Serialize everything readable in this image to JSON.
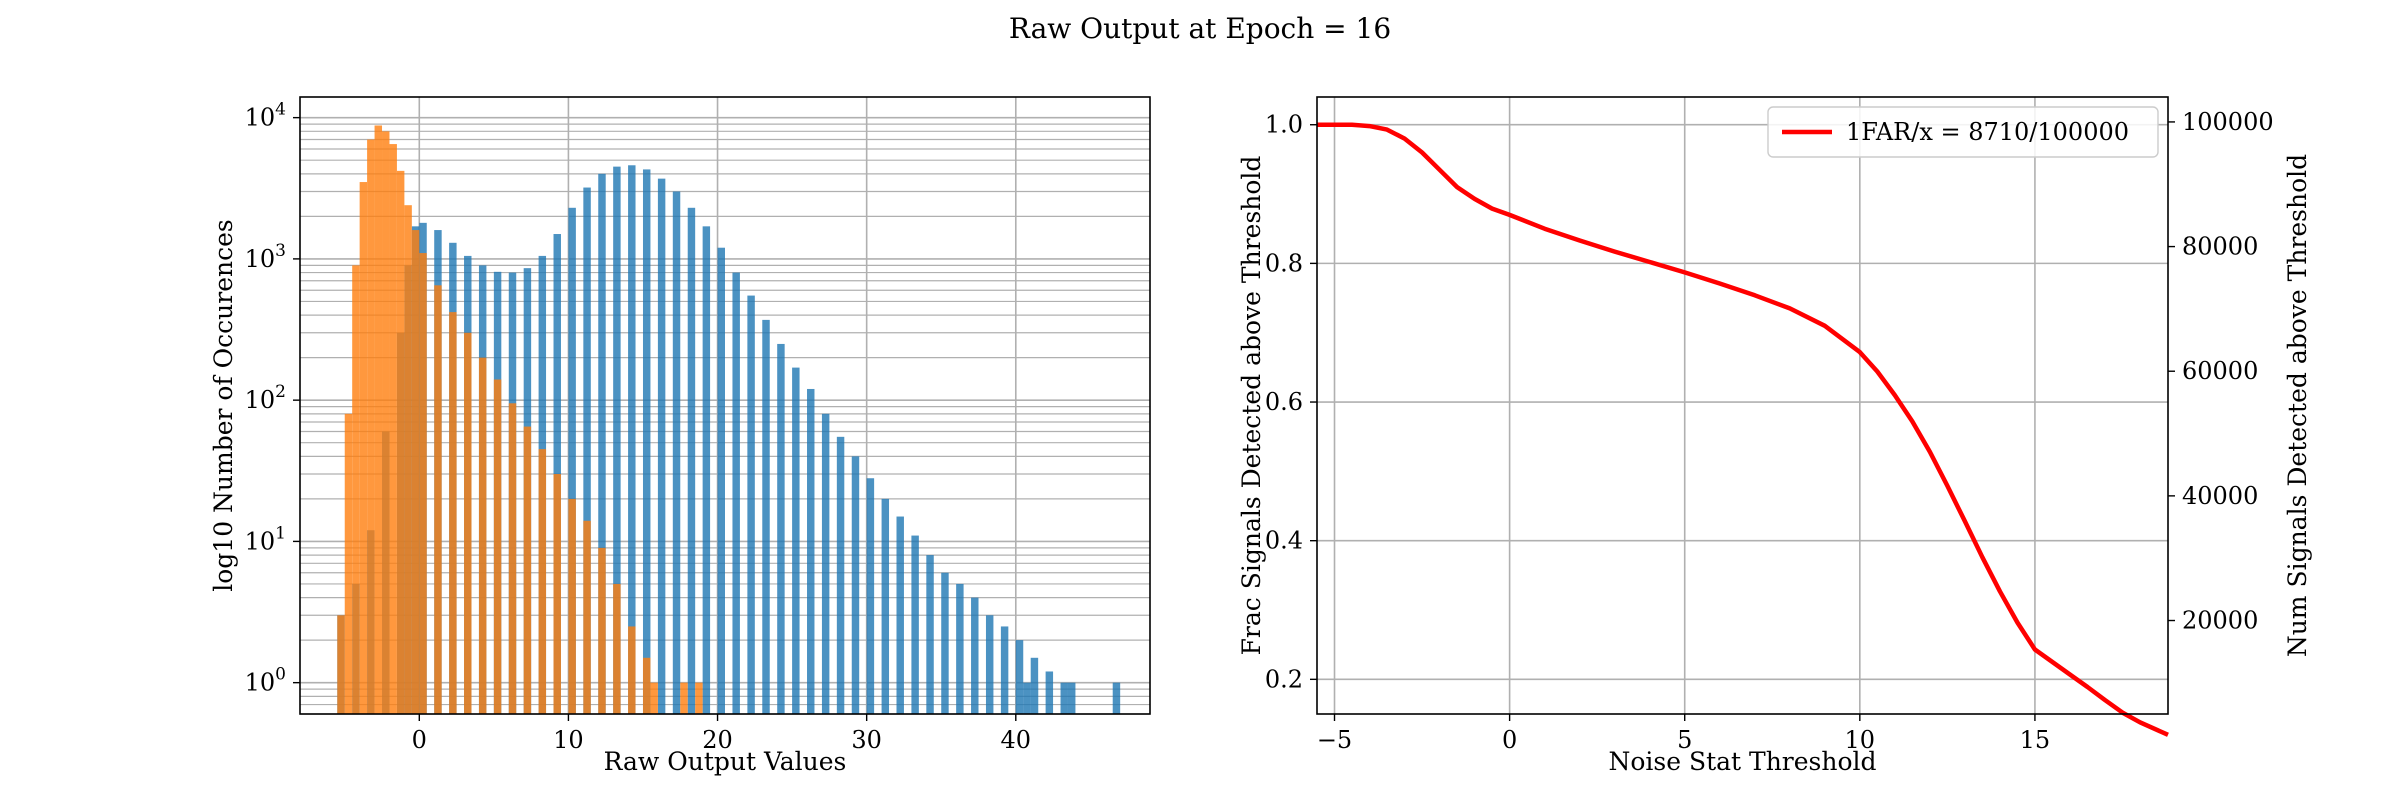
{
  "figure_title": "Raw Output at Epoch = 16",
  "chart_data": [
    {
      "type": "histogram",
      "title": "",
      "xlabel": "Raw Output Values",
      "ylabel": "log10 Number of Occurences",
      "yscale": "log",
      "xlim": [
        -8,
        49
      ],
      "ylim": [
        0.6,
        14000
      ],
      "grid": true,
      "xticks": [
        0,
        10,
        20,
        30,
        40
      ],
      "yticks": [
        {
          "value": 1,
          "base": "10",
          "exp": "0"
        },
        {
          "value": 10,
          "base": "10",
          "exp": "1"
        },
        {
          "value": 100,
          "base": "10",
          "exp": "2"
        },
        {
          "value": 1000,
          "base": "10",
          "exp": "3"
        },
        {
          "value": 10000,
          "base": "10",
          "exp": "4"
        }
      ],
      "series": [
        {
          "color": "#1f77b4",
          "alpha": 0.8,
          "bin_width": 0.5,
          "points": [
            [
              -5.5,
              3
            ],
            [
              -4.5,
              5
            ],
            [
              -3.5,
              12
            ],
            [
              -2.5,
              60
            ],
            [
              -1.5,
              300
            ],
            [
              -1,
              900
            ],
            [
              -0.5,
              1700
            ],
            [
              0,
              1800
            ],
            [
              1,
              1600
            ],
            [
              2,
              1300
            ],
            [
              3,
              1050
            ],
            [
              4,
              900
            ],
            [
              5,
              810
            ],
            [
              6,
              800
            ],
            [
              7,
              860
            ],
            [
              8,
              1050
            ],
            [
              9,
              1500
            ],
            [
              10,
              2300
            ],
            [
              11,
              3200
            ],
            [
              12,
              4000
            ],
            [
              13,
              4500
            ],
            [
              14,
              4600
            ],
            [
              15,
              4300
            ],
            [
              16,
              3700
            ],
            [
              17,
              3000
            ],
            [
              18,
              2300
            ],
            [
              19,
              1700
            ],
            [
              20,
              1200
            ],
            [
              21,
              800
            ],
            [
              22,
              550
            ],
            [
              23,
              370
            ],
            [
              24,
              250
            ],
            [
              25,
              170
            ],
            [
              26,
              120
            ],
            [
              27,
              80
            ],
            [
              28,
              55
            ],
            [
              29,
              40
            ],
            [
              30,
              28
            ],
            [
              31,
              20
            ],
            [
              32,
              15
            ],
            [
              33,
              11
            ],
            [
              34,
              8
            ],
            [
              35,
              6
            ],
            [
              36,
              5
            ],
            [
              37,
              4
            ],
            [
              38,
              3
            ],
            [
              39,
              2.5
            ],
            [
              40,
              2
            ],
            [
              41,
              1.5
            ],
            [
              42,
              1.2
            ]
          ],
          "sparse": [
            [
              40,
              1
            ],
            [
              40.5,
              1
            ],
            [
              41,
              1
            ],
            [
              43,
              1
            ],
            [
              43.5,
              1
            ],
            [
              46.5,
              1
            ]
          ]
        },
        {
          "color": "#ff7f0e",
          "alpha": 0.8,
          "bin_width": 0.5,
          "points": [
            [
              -5.5,
              3
            ],
            [
              -5,
              80
            ],
            [
              -4.5,
              900
            ],
            [
              -4,
              3500
            ],
            [
              -3.5,
              7000
            ],
            [
              -3,
              8800
            ],
            [
              -2.5,
              8000
            ],
            [
              -2,
              6500
            ],
            [
              -1.5,
              4200
            ],
            [
              -1,
              2400
            ],
            [
              -0.5,
              1600
            ],
            [
              0,
              1100
            ],
            [
              1,
              650
            ],
            [
              2,
              420
            ],
            [
              3,
              300
            ],
            [
              4,
              200
            ],
            [
              5,
              140
            ],
            [
              6,
              95
            ],
            [
              7,
              65
            ],
            [
              8,
              45
            ],
            [
              9,
              30
            ],
            [
              10,
              20
            ],
            [
              11,
              14
            ],
            [
              12,
              9
            ],
            [
              13,
              5
            ],
            [
              14,
              2.5
            ],
            [
              15,
              1.5
            ],
            [
              15.5,
              1
            ]
          ],
          "sparse": [
            [
              17.5,
              1
            ],
            [
              18.5,
              1
            ]
          ]
        }
      ]
    },
    {
      "type": "line",
      "title": "",
      "xlabel": "Noise Stat Threshold",
      "ylabel": "Frac Signals Detected above Threshold",
      "y2label": "Num Signals Detected above Threshold",
      "xlim": [
        -5.5,
        18.8
      ],
      "ylim": [
        0.15,
        1.04
      ],
      "y2lim": [
        5000,
        104000
      ],
      "xticks": [
        -5,
        0,
        5,
        10,
        15
      ],
      "yticks": [
        0.2,
        0.4,
        0.6,
        0.8,
        1.0
      ],
      "y2ticks": [
        20000,
        40000,
        60000,
        80000,
        100000
      ],
      "grid": true,
      "legend_position": "top-right",
      "series": [
        {
          "name": "1FAR/x = 8710/100000",
          "color": "#ff0000",
          "x": [
            -5.5,
            -5,
            -4.5,
            -4,
            -3.5,
            -3,
            -2.5,
            -2,
            -1.5,
            -1,
            -0.5,
            0,
            1,
            2,
            3,
            4,
            5,
            6,
            7,
            8,
            9,
            10,
            10.5,
            11,
            11.5,
            12,
            12.5,
            13,
            13.5,
            14,
            14.5,
            15,
            15.5,
            16,
            16.5,
            17,
            17.5,
            18,
            18.8
          ],
          "y": [
            1.0,
            1.0,
            1.0,
            0.998,
            0.993,
            0.98,
            0.96,
            0.935,
            0.91,
            0.893,
            0.879,
            0.87,
            0.85,
            0.833,
            0.817,
            0.802,
            0.787,
            0.771,
            0.754,
            0.735,
            0.71,
            0.672,
            0.644,
            0.61,
            0.572,
            0.528,
            0.479,
            0.428,
            0.376,
            0.327,
            0.282,
            0.243,
            0.225,
            0.207,
            0.189,
            0.17,
            0.152,
            0.138,
            0.12
          ]
        }
      ]
    }
  ]
}
